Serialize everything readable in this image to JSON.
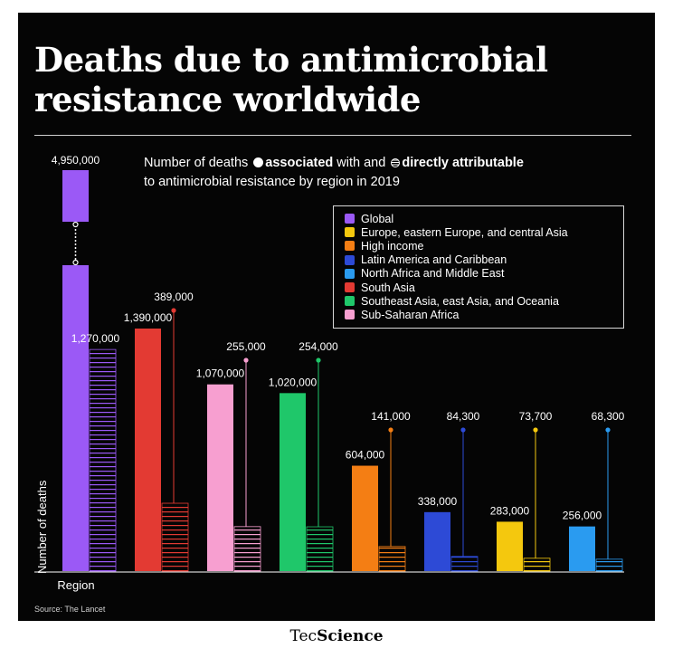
{
  "title": "Deaths due to antimicrobial resistance worldwide",
  "subtitle": {
    "prefix": "Number of deaths",
    "associated": "associated",
    "middle": "with and",
    "attributable": "directly attributable",
    "suffix": "to antimicrobial resistance by region in 2019"
  },
  "source": "Source: The Lancet",
  "brand": {
    "part1": "Tec",
    "part2": "Science"
  },
  "chart_data": {
    "type": "bar",
    "title": "Deaths due to antimicrobial resistance worldwide",
    "subtitle": "Number of deaths associated with and directly attributable to antimicrobial resistance by region in 2019",
    "xlabel": "Region",
    "ylabel": "Number of deaths",
    "axis_break": "Global bar axis is broken between ~1,400,000 and ~4,950,000",
    "categories": [
      "Global",
      "South Asia",
      "Sub-Saharan Africa",
      "Southeast Asia, east Asia, and Oceania",
      "High income",
      "Latin America and Caribbean",
      "Europe, eastern Europe, and central Asia",
      "North Africa and Middle East"
    ],
    "colors": [
      "#9b59f6",
      "#e33a33",
      "#f79fd0",
      "#1fc76a",
      "#f47e14",
      "#2d4ad6",
      "#f4c80e",
      "#2a9bf0"
    ],
    "series": [
      {
        "name": "associated",
        "values": [
          4950000,
          1390000,
          1070000,
          1020000,
          604000,
          338000,
          283000,
          256000
        ],
        "labels": [
          "4,950,000",
          "1,390,000",
          "1,070,000",
          "1,020,000",
          "604,000",
          "338,000",
          "283,000",
          "256,000"
        ]
      },
      {
        "name": "directly attributable",
        "values": [
          1270000,
          389000,
          255000,
          254000,
          141000,
          84300,
          73700,
          68300
        ],
        "labels": [
          "1,270,000",
          "389,000",
          "255,000",
          "254,000",
          "141,000",
          "84,300",
          "73,700",
          "68,300"
        ]
      }
    ]
  },
  "legend": [
    {
      "label": "Global",
      "color": "#9b59f6"
    },
    {
      "label": "Europe, eastern Europe, and central Asia",
      "color": "#f4c80e"
    },
    {
      "label": "High income",
      "color": "#f47e14"
    },
    {
      "label": "Latin America and Caribbean",
      "color": "#2d4ad6"
    },
    {
      "label": "North Africa and Middle East",
      "color": "#2a9bf0"
    },
    {
      "label": "South Asia",
      "color": "#e33a33"
    },
    {
      "label": "Southeast Asia, east Asia, and Oceania",
      "color": "#1fc76a"
    },
    {
      "label": "Sub-Saharan Africa",
      "color": "#f79fd0"
    }
  ]
}
